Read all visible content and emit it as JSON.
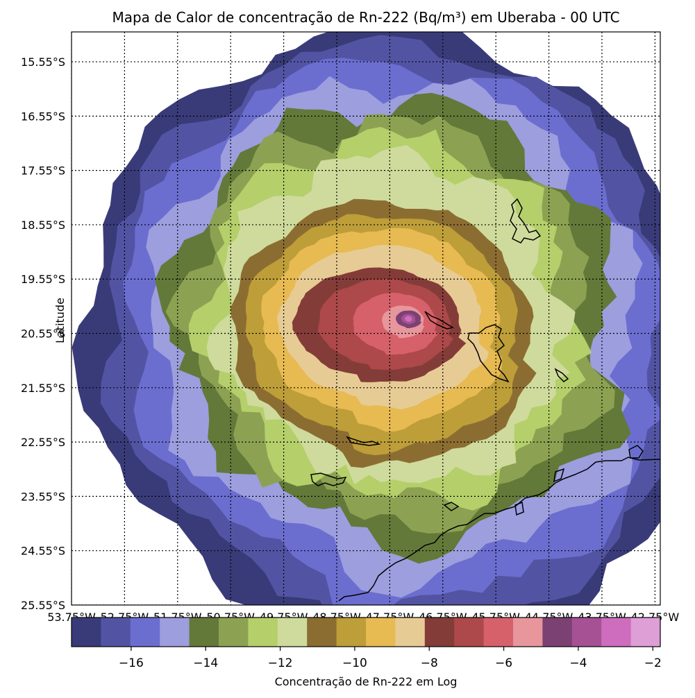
{
  "title": "Mapa de Calor de concentração de Rn-222 (Bq/m³) em Uberaba - 00 UTC",
  "ylabel": "Latitude",
  "colorbar_label": "Concentração de Rn-222 em Log",
  "lat_labels": [
    "15.55°S",
    "16.55°S",
    "17.55°S",
    "18.55°S",
    "19.55°S",
    "20.55°S",
    "21.55°S",
    "22.55°S",
    "23.55°S",
    "24.55°S",
    "25.55°S"
  ],
  "lon_labels": [
    "53.75°W",
    "52.75°W",
    "51.75°W",
    "50.75°W",
    "49.75°W",
    "48.75°W",
    "47.75°W",
    "46.75°W",
    "45.75°W",
    "44.75°W",
    "43.75°W",
    "42.75°W"
  ],
  "colorbar": {
    "min": -17.6,
    "max": -1.8,
    "ticks": [
      -16,
      -14,
      -12,
      -10,
      -8,
      -6,
      -4,
      -2
    ],
    "tick_labels": [
      "−16",
      "−14",
      "−12",
      "−10",
      "−8",
      "−6",
      "−4",
      "−2"
    ],
    "colors": [
      "#393b79",
      "#5254a3",
      "#6b6ecf",
      "#9c9ede",
      "#637939",
      "#8ca252",
      "#b5cf6b",
      "#cedb9c",
      "#8c6d31",
      "#bd9e39",
      "#e7ba52",
      "#e7cb94",
      "#843c39",
      "#ad494a",
      "#d6616b",
      "#e7969c",
      "#7b4173",
      "#a55194",
      "#ce6dbd",
      "#de9ed6"
    ]
  },
  "chart_data": {
    "type": "heatmap",
    "title": "Mapa de Calor de concentração de Rn-222 (Bq/m³) em Uberaba - 00 UTC",
    "ylabel": "Latitude",
    "colorbar_label": "Concentração de Rn-222 em Log",
    "value_range": [
      -17.6,
      -1.8
    ],
    "lat_range": [
      -25.55,
      -15.0
    ],
    "lon_range": [
      -53.75,
      -42.65
    ],
    "peak": {
      "lat": -20.28,
      "lon": -47.4,
      "log_concentration": -3.5
    },
    "grid": true
  }
}
